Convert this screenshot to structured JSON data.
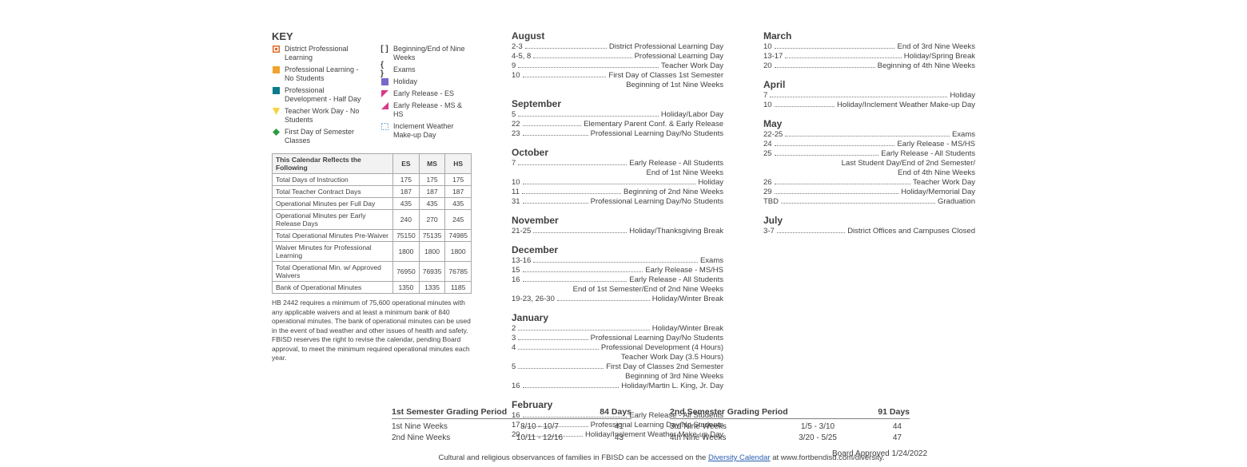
{
  "key": {
    "title": "KEY",
    "left": [
      {
        "label": "District Professional Learning",
        "shape": "square_outline",
        "color": "#e06a2a"
      },
      {
        "label": "Professional Learning - No Students",
        "shape": "square",
        "color": "#f0a22d"
      },
      {
        "label": "Professional Development - Half Day",
        "shape": "square",
        "color": "#0b7b8c"
      },
      {
        "label": "Teacher Work Day - No Students",
        "shape": "triangle_down",
        "color": "#f7d33a"
      },
      {
        "label": "First Day of Semester Classes",
        "shape": "diamond",
        "color": "#2e9a3f"
      }
    ],
    "right": [
      {
        "label": "Beginning/End of Nine Weeks",
        "shape": "brackets",
        "color": "#3f3f3f"
      },
      {
        "label": "Exams",
        "shape": "braces",
        "color": "#3f3f3f"
      },
      {
        "label": "Holiday",
        "shape": "square",
        "color": "#7a67c9"
      },
      {
        "label": "Early Release - ES",
        "shape": "triangle_tl",
        "color": "#d63a8a"
      },
      {
        "label": "Early Release - MS & HS",
        "shape": "triangle_br",
        "color": "#d63a8a"
      },
      {
        "label": "Inclement Weather Make-up Day",
        "shape": "dashed_box",
        "color": "#5da4d6"
      }
    ]
  },
  "minutes": {
    "header": [
      "This Calendar Reflects the Following",
      "ES",
      "MS",
      "HS"
    ],
    "rows": [
      [
        "Total Days of Instruction",
        "175",
        "175",
        "175"
      ],
      [
        "Total Teacher Contract Days",
        "187",
        "187",
        "187"
      ],
      [
        "Operational Minutes per Full Day",
        "435",
        "435",
        "435"
      ],
      [
        "Operational Minutes per Early Release Days",
        "240",
        "270",
        "245"
      ],
      [
        "Total Operational Minutes Pre-Waiver",
        "75150",
        "75135",
        "74985"
      ],
      [
        "Waiver Minutes for Professional Learning",
        "1800",
        "1800",
        "1800"
      ],
      [
        "Total Operational Min. w/ Approved Waivers",
        "76950",
        "76935",
        "76785"
      ],
      [
        "Bank of Operational Minutes",
        "1350",
        "1335",
        "1185"
      ]
    ],
    "footnote": "HB 2442 requires a minimum of 75,600 operational minutes with any applicable waivers and at least a minimum bank of 840 operational minutes. The bank of operational minutes can be used in the event of bad weather and other issues of health and safety. FBISD reserves the right to revise the calendar, pending Board approval, to meet the minimum required operational minutes each year."
  },
  "months_mid": [
    {
      "name": "August",
      "events": [
        {
          "d": "2-3",
          "t": "District Professional Learning Day"
        },
        {
          "d": "4-5, 8",
          "t": "Professional Learning Day"
        },
        {
          "d": "9",
          "t": "Teacher Work Day"
        },
        {
          "d": "10",
          "t": "First Day of Classes 1st Semester",
          "c": "Beginning of 1st Nine Weeks"
        }
      ]
    },
    {
      "name": "September",
      "events": [
        {
          "d": "5",
          "t": "Holiday/Labor Day"
        },
        {
          "d": "22",
          "t": "Elementary Parent Conf. & Early Release"
        },
        {
          "d": "23",
          "t": "Professional Learning Day/No Students"
        }
      ]
    },
    {
      "name": "October",
      "events": [
        {
          "d": "7",
          "t": "Early Release - All Students",
          "c": "End of 1st Nine Weeks"
        },
        {
          "d": "10",
          "t": "Holiday"
        },
        {
          "d": "11",
          "t": "Beginning of 2nd Nine Weeks"
        },
        {
          "d": "31",
          "t": "Professional Learning Day/No Students"
        }
      ]
    },
    {
      "name": "November",
      "events": [
        {
          "d": "21-25",
          "t": "Holiday/Thanksgiving Break"
        }
      ]
    },
    {
      "name": "December",
      "events": [
        {
          "d": "13-16",
          "t": "Exams"
        },
        {
          "d": "15",
          "t": "Early Release - MS/HS"
        },
        {
          "d": "16",
          "t": "Early Release - All Students",
          "c": "End of 1st Semester/End of 2nd Nine Weeks"
        },
        {
          "d": "19-23, 26-30",
          "t": "Holiday/Winter Break"
        }
      ]
    },
    {
      "name": "January",
      "events": [
        {
          "d": "2",
          "t": "Holiday/Winter Break"
        },
        {
          "d": "3",
          "t": "Professional Learning Day/No Students"
        },
        {
          "d": "4",
          "t": "Professional Development (4 Hours)",
          "c": "Teacher Work Day (3.5 Hours)"
        },
        {
          "d": "5",
          "t": "First Day of Classes 2nd Semester",
          "c": "Beginning of 3rd Nine Weeks"
        },
        {
          "d": "16",
          "t": "Holiday/Martin L. King, Jr. Day"
        }
      ]
    },
    {
      "name": "February",
      "events": [
        {
          "d": "16",
          "t": "Early Release - All Students"
        },
        {
          "d": "17",
          "t": "Professional Learning Day/No Students"
        },
        {
          "d": "20",
          "t": "Holiday/Inclement Weather Make-up Day"
        }
      ]
    }
  ],
  "months_right": [
    {
      "name": "March",
      "events": [
        {
          "d": "10",
          "t": "End of 3rd Nine Weeks"
        },
        {
          "d": "13-17",
          "t": "Holiday/Spring Break"
        },
        {
          "d": "20",
          "t": "Beginning of 4th Nine Weeks"
        }
      ]
    },
    {
      "name": "April",
      "events": [
        {
          "d": "7",
          "t": "Holiday"
        },
        {
          "d": "10",
          "t": "Holiday/Inclement Weather Make-up Day"
        }
      ]
    },
    {
      "name": "May",
      "events": [
        {
          "d": "22-25",
          "t": "Exams"
        },
        {
          "d": "24",
          "t": "Early Release - MS/HS"
        },
        {
          "d": "25",
          "t": "Early Release - All Students",
          "c": "Last Student Day/End of 2nd Semester/",
          "c2": "End of 4th Nine Weeks"
        },
        {
          "d": "26",
          "t": "Teacher Work Day"
        },
        {
          "d": "29",
          "t": "Holiday/Memorial Day"
        },
        {
          "d": "TBD",
          "t": "Graduation"
        }
      ]
    },
    {
      "name": "July",
      "events": [
        {
          "d": "3-7",
          "t": "District Offices and Campuses Closed"
        }
      ]
    }
  ],
  "grading": {
    "sem1": {
      "title": "1st Semester Grading Period",
      "days": "84 Days",
      "rows": [
        [
          "1st Nine Weeks",
          "8/10 - 10/7",
          "41"
        ],
        [
          "2nd Nine Weeks",
          "10/11 - 12/16",
          "43"
        ]
      ]
    },
    "sem2": {
      "title": "2nd Semester Grading Period",
      "days": "91 Days",
      "rows": [
        [
          "3rd Nine Weeks",
          "1/5 - 3/10",
          "44"
        ],
        [
          "4th Nine Weeks",
          "3/20 - 5/25",
          "47"
        ]
      ]
    }
  },
  "observance_pre": "Cultural and religious observances of families in FBISD can be accessed on the ",
  "observance_link": "Diversity Calendar",
  "observance_post": " at www.fortbendisd.com/diversity.",
  "board": "Board Approved   1/24/2022"
}
